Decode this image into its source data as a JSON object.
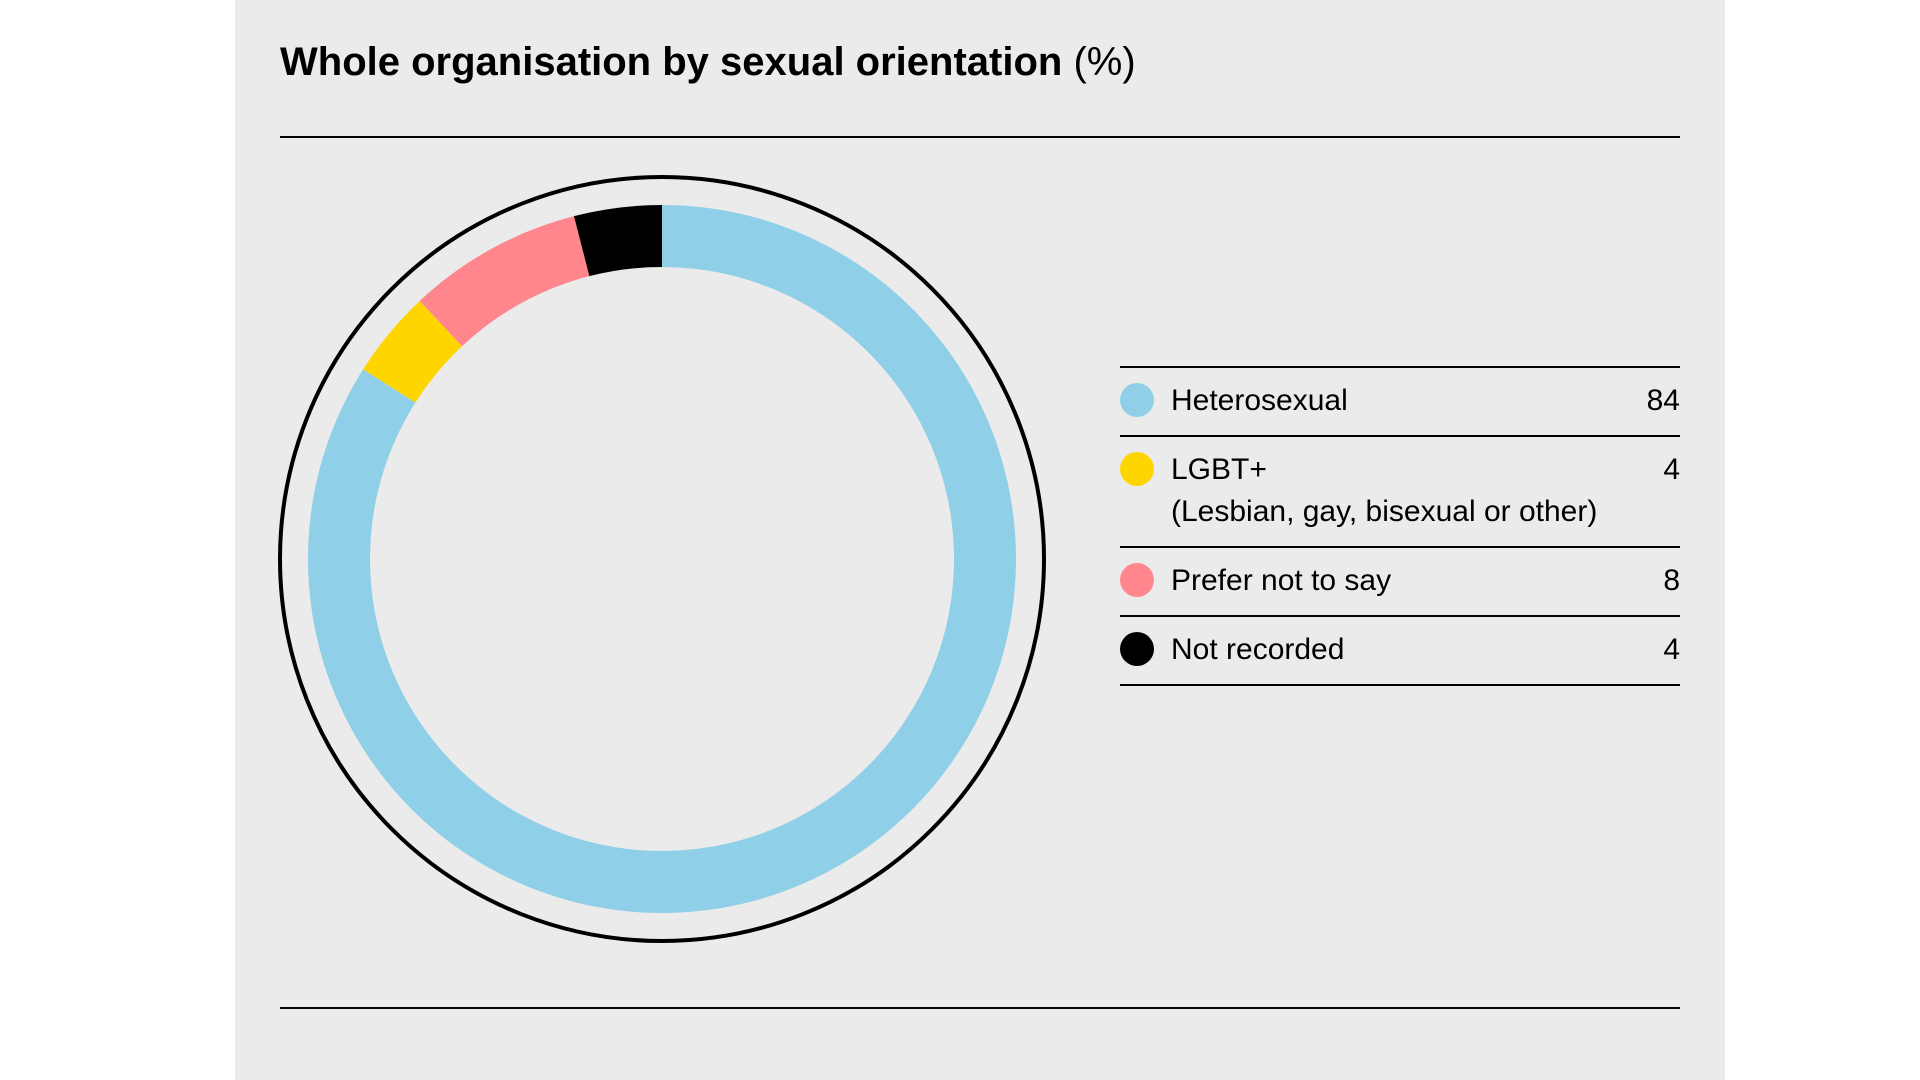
{
  "chart_data": {
    "type": "pie",
    "variant": "donut",
    "title": "Whole organisation by sexual orientation",
    "unit": "(%)",
    "categories": [
      "Heterosexual",
      "LGBT+",
      "Prefer not to say",
      "Not recorded"
    ],
    "sublabels": [
      "",
      "(Lesbian, gay, bisexual or other)",
      "",
      ""
    ],
    "values": [
      84,
      4,
      8,
      4
    ],
    "value_labels": [
      "84",
      "4",
      "8",
      "4"
    ],
    "colors": [
      "#8fd0e8",
      "#ffd500",
      "#ff868d",
      "#000000"
    ],
    "legend_position": "right",
    "grid": false
  }
}
